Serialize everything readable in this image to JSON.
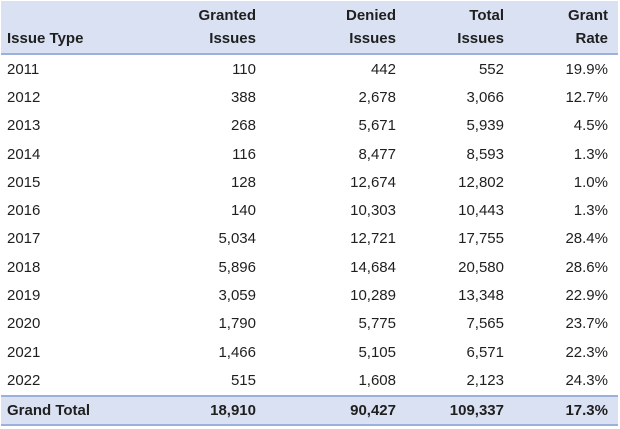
{
  "chart_data": {
    "type": "table",
    "columns": [
      "Issue Type",
      "Granted Issues",
      "Denied Issues",
      "Total Issues",
      "Grant Rate"
    ],
    "rows": [
      {
        "issue_type": "2011",
        "granted_issues": 110,
        "denied_issues": 442,
        "total_issues": 552,
        "grant_rate_pct": 19.9
      },
      {
        "issue_type": "2012",
        "granted_issues": 388,
        "denied_issues": 2678,
        "total_issues": 3066,
        "grant_rate_pct": 12.7
      },
      {
        "issue_type": "2013",
        "granted_issues": 268,
        "denied_issues": 5671,
        "total_issues": 5939,
        "grant_rate_pct": 4.5
      },
      {
        "issue_type": "2014",
        "granted_issues": 116,
        "denied_issues": 8477,
        "total_issues": 8593,
        "grant_rate_pct": 1.3
      },
      {
        "issue_type": "2015",
        "granted_issues": 128,
        "denied_issues": 12674,
        "total_issues": 12802,
        "grant_rate_pct": 1.0
      },
      {
        "issue_type": "2016",
        "granted_issues": 140,
        "denied_issues": 10303,
        "total_issues": 10443,
        "grant_rate_pct": 1.3
      },
      {
        "issue_type": "2017",
        "granted_issues": 5034,
        "denied_issues": 12721,
        "total_issues": 17755,
        "grant_rate_pct": 28.4
      },
      {
        "issue_type": "2018",
        "granted_issues": 5896,
        "denied_issues": 14684,
        "total_issues": 20580,
        "grant_rate_pct": 28.6
      },
      {
        "issue_type": "2019",
        "granted_issues": 3059,
        "denied_issues": 10289,
        "total_issues": 13348,
        "grant_rate_pct": 22.9
      },
      {
        "issue_type": "2020",
        "granted_issues": 1790,
        "denied_issues": 5775,
        "total_issues": 7565,
        "grant_rate_pct": 23.7
      },
      {
        "issue_type": "2021",
        "granted_issues": 1466,
        "denied_issues": 5105,
        "total_issues": 6571,
        "grant_rate_pct": 22.3
      },
      {
        "issue_type": "2022",
        "granted_issues": 515,
        "denied_issues": 1608,
        "total_issues": 2123,
        "grant_rate_pct": 24.3
      }
    ],
    "grand_total": {
      "issue_type": "Grand Total",
      "granted_issues": 18910,
      "denied_issues": 90427,
      "total_issues": 109337,
      "grant_rate_pct": 17.3
    }
  },
  "table": {
    "header": {
      "issue_type": "Issue Type",
      "granted": {
        "line1": "Granted",
        "line2": "Issues"
      },
      "denied": {
        "line1": "Denied",
        "line2": "Issues"
      },
      "total": {
        "line1": "Total",
        "line2": "Issues"
      },
      "rate": {
        "line1": "Grant",
        "line2": "Rate"
      }
    },
    "rows": [
      {
        "label": "2011",
        "granted": "110",
        "denied": "442",
        "total": "552",
        "rate": "19.9%"
      },
      {
        "label": "2012",
        "granted": "388",
        "denied": "2,678",
        "total": "3,066",
        "rate": "12.7%"
      },
      {
        "label": "2013",
        "granted": "268",
        "denied": "5,671",
        "total": "5,939",
        "rate": "4.5%"
      },
      {
        "label": "2014",
        "granted": "116",
        "denied": "8,477",
        "total": "8,593",
        "rate": "1.3%"
      },
      {
        "label": "2015",
        "granted": "128",
        "denied": "12,674",
        "total": "12,802",
        "rate": "1.0%"
      },
      {
        "label": "2016",
        "granted": "140",
        "denied": "10,303",
        "total": "10,443",
        "rate": "1.3%"
      },
      {
        "label": "2017",
        "granted": "5,034",
        "denied": "12,721",
        "total": "17,755",
        "rate": "28.4%"
      },
      {
        "label": "2018",
        "granted": "5,896",
        "denied": "14,684",
        "total": "20,580",
        "rate": "28.6%"
      },
      {
        "label": "2019",
        "granted": "3,059",
        "denied": "10,289",
        "total": "13,348",
        "rate": "22.9%"
      },
      {
        "label": "2020",
        "granted": "1,790",
        "denied": "5,775",
        "total": "7,565",
        "rate": "23.7%"
      },
      {
        "label": "2021",
        "granted": "1,466",
        "denied": "5,105",
        "total": "6,571",
        "rate": "22.3%"
      },
      {
        "label": "2022",
        "granted": "515",
        "denied": "1,608",
        "total": "2,123",
        "rate": "24.3%"
      }
    ],
    "grand_total": {
      "label": "Grand Total",
      "granted": "18,910",
      "denied": "90,427",
      "total": "109,337",
      "rate": "17.3%"
    }
  },
  "colors": {
    "header_bg": "#D9E1F2",
    "row_bg": "#FFFFFF",
    "border": "#9BB1DB",
    "text": "#1F1F1F"
  }
}
